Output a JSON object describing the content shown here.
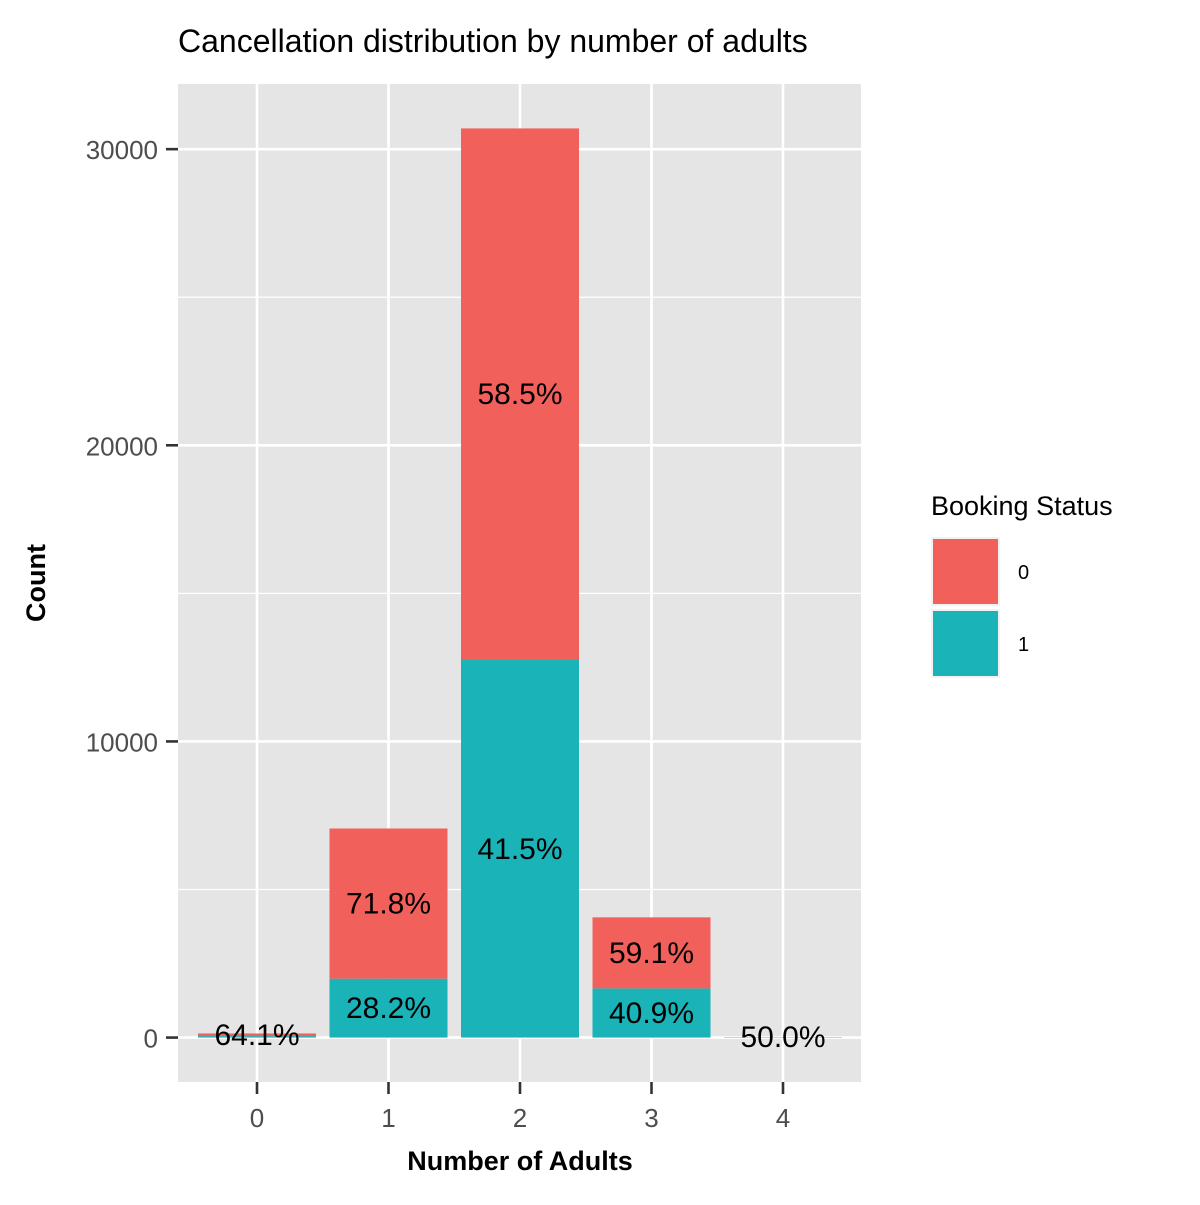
{
  "chart_data": {
    "type": "bar",
    "stacked": true,
    "title": "Cancellation distribution by number of adults",
    "xlabel": "Number of Adults",
    "ylabel": "Count",
    "categories": [
      "0",
      "1",
      "2",
      "3",
      "4"
    ],
    "ylim": [
      -1500,
      32200
    ],
    "yticks": [
      0,
      10000,
      20000,
      30000
    ],
    "grid": true,
    "legend": {
      "title": "Booking Status",
      "position": "right",
      "entries": [
        "0",
        "1"
      ]
    },
    "series": [
      {
        "name": "0",
        "color": "#F2605C",
        "values": [
          89,
          5070,
          17950,
          2400,
          8
        ],
        "labels": [
          "64.1%",
          "71.8%",
          "58.5%",
          "59.1%",
          "50.0%"
        ]
      },
      {
        "name": "1",
        "color": "#19B3B8",
        "values": [
          50,
          1990,
          12750,
          1660,
          8
        ],
        "labels": [
          "",
          "28.2%",
          "41.5%",
          "40.9%",
          ""
        ]
      }
    ]
  }
}
